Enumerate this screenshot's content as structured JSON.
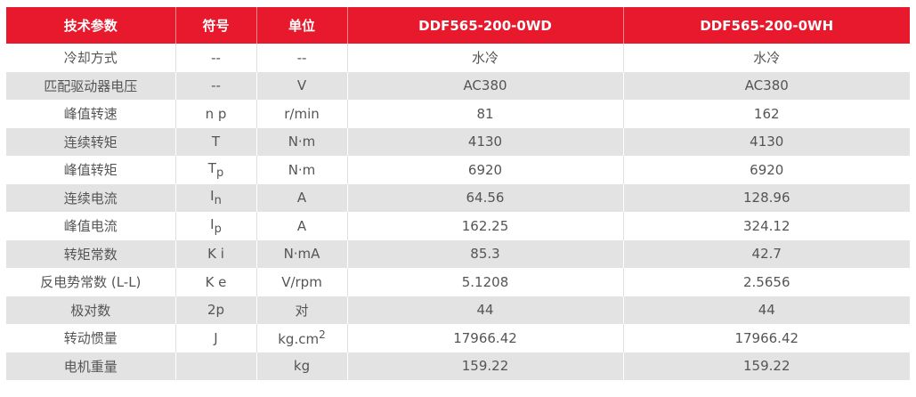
{
  "table": {
    "header": [
      "技术参数",
      "符号",
      "单位",
      "DDF565-200-0WD",
      "DDF565-200-0WH"
    ],
    "rows": [
      [
        "冷却方式",
        "--",
        "--",
        "水冷",
        "水冷"
      ],
      [
        "匹配驱动器电压",
        "--",
        "V",
        "AC380",
        "AC380"
      ],
      [
        "峰值转速",
        "n p",
        "r/min",
        "81",
        "162"
      ],
      [
        "连续转矩",
        "T",
        "N·m",
        "4130",
        "4130"
      ],
      [
        "峰值转矩",
        {
          "text": "T",
          "sub": "p"
        },
        "N·m",
        "6920",
        "6920"
      ],
      [
        "连续电流",
        {
          "text": "I",
          "sub": "n"
        },
        "A",
        "64.56",
        "128.96"
      ],
      [
        "峰值电流",
        {
          "text": "I",
          "sub": "p"
        },
        "A",
        "162.25",
        "324.12"
      ],
      [
        "转矩常数",
        "K i",
        "N·mA",
        "85.3",
        "42.7"
      ],
      [
        "反电势常数 (L-L)",
        "K e",
        "V/rpm",
        "5.1208",
        "2.5656"
      ],
      [
        "极对数",
        "2p",
        "对",
        "44",
        "44"
      ],
      [
        "转动惯量",
        "J",
        {
          "text": "kg.cm",
          "sup": "2"
        },
        "17966.42",
        "17966.42"
      ],
      [
        "电机重量",
        null,
        "kg",
        "159.22",
        "159.22"
      ]
    ]
  }
}
